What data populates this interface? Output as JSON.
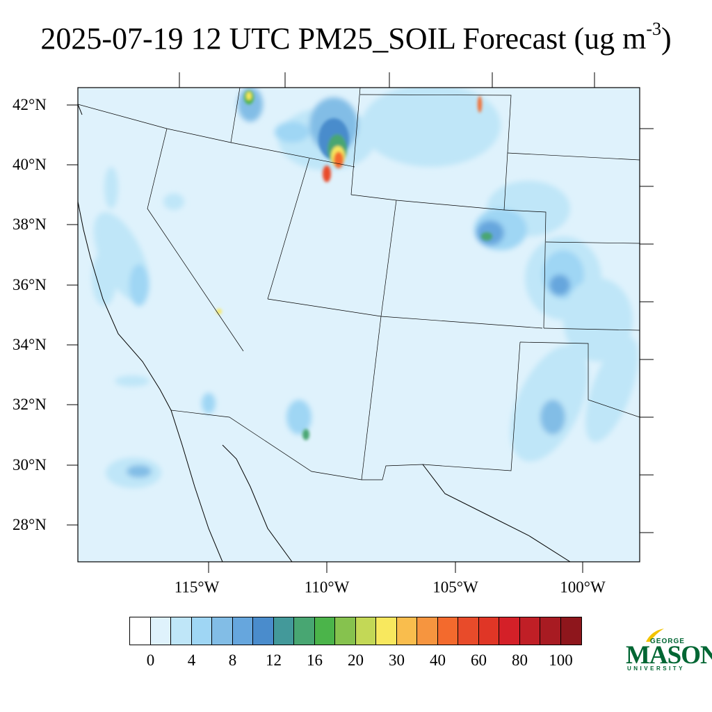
{
  "title": {
    "main": "2025-07-19 12 UTC PM25_SOIL Forecast (ug m",
    "exponent": "-3",
    "close": ")"
  },
  "map": {
    "background_color": "#dff2fc",
    "lat_labels": [
      "42°N",
      "40°N",
      "38°N",
      "36°N",
      "34°N",
      "32°N",
      "30°N",
      "28°N"
    ],
    "lon_labels": [
      "115°W",
      "110°W",
      "105°W",
      "100°W"
    ]
  },
  "colorbar": {
    "colors": [
      "#ffffff",
      "#dff2fc",
      "#bfe6f8",
      "#9fd6f4",
      "#82bde6",
      "#66a6dd",
      "#4a8ccc",
      "#43999a",
      "#48a672",
      "#4bb44a",
      "#86c24e",
      "#c3d856",
      "#f8e85e",
      "#f9bd4d",
      "#f6953f",
      "#f36a2d",
      "#e84b2a",
      "#e03626",
      "#d42028",
      "#c01f26",
      "#a81b22",
      "#8e161c"
    ],
    "labels": [
      "0",
      "4",
      "8",
      "12",
      "16",
      "20",
      "30",
      "40",
      "60",
      "80",
      "100"
    ]
  },
  "logo": {
    "george": "GEORGE",
    "mason": "MASON",
    "university": "UNIVERSITY",
    "brand_color": "#006633",
    "accent_color": "#f2c300"
  }
}
